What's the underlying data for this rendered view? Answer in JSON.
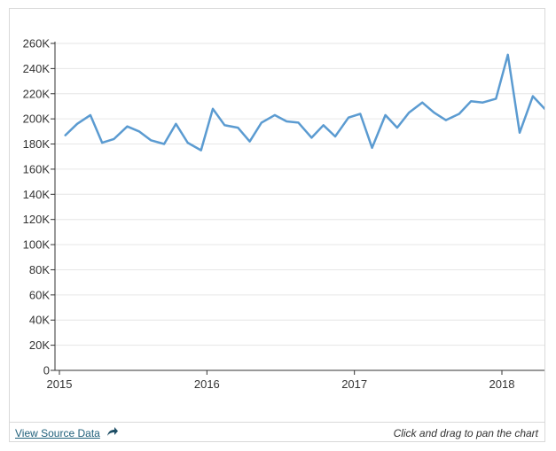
{
  "chart_data": {
    "type": "line",
    "title": "",
    "xlabel": "",
    "ylabel": "",
    "xlim": [
      2015.0,
      2018.28
    ],
    "ylim": [
      0,
      260000
    ],
    "y_ticks": [
      0,
      20000,
      40000,
      60000,
      80000,
      100000,
      120000,
      140000,
      160000,
      180000,
      200000,
      220000,
      240000,
      260000
    ],
    "y_tick_labels": [
      "0",
      "20K",
      "40K",
      "60K",
      "80K",
      "100K",
      "120K",
      "140K",
      "160K",
      "180K",
      "200K",
      "220K",
      "240K",
      "260K"
    ],
    "x_ticks": [
      2015,
      2016,
      2017,
      2018
    ],
    "x_tick_labels": [
      "2015",
      "2016",
      "2017",
      "2018"
    ],
    "grid": "horizontal",
    "line_color": "#5b9bd1",
    "series": [
      {
        "x": [
          2015.04,
          2015.12,
          2015.21,
          2015.29,
          2015.37,
          2015.46,
          2015.54,
          2015.62,
          2015.71,
          2015.79,
          2015.87,
          2015.96,
          2016.04,
          2016.12,
          2016.21,
          2016.29,
          2016.37,
          2016.46,
          2016.54,
          2016.62,
          2016.71,
          2016.79,
          2016.87,
          2016.96,
          2017.04,
          2017.12,
          2017.21,
          2017.29,
          2017.37,
          2017.46,
          2017.54,
          2017.62,
          2017.71,
          2017.79,
          2017.87,
          2017.96,
          2018.04,
          2018.12,
          2018.21,
          2018.29
        ],
        "values": [
          187000,
          196000,
          203000,
          181000,
          184000,
          194000,
          190000,
          183000,
          180000,
          196000,
          181000,
          175000,
          208000,
          195000,
          193000,
          182000,
          197000,
          203000,
          198000,
          197000,
          185000,
          195000,
          186000,
          201000,
          204000,
          177000,
          203000,
          193000,
          205000,
          213000,
          205000,
          199000,
          204000,
          214000,
          213000,
          216000,
          251000,
          189000,
          218000,
          208000
        ]
      }
    ]
  },
  "footer": {
    "source_label": "View Source Data",
    "pan_hint": "Click and drag to pan the chart"
  }
}
